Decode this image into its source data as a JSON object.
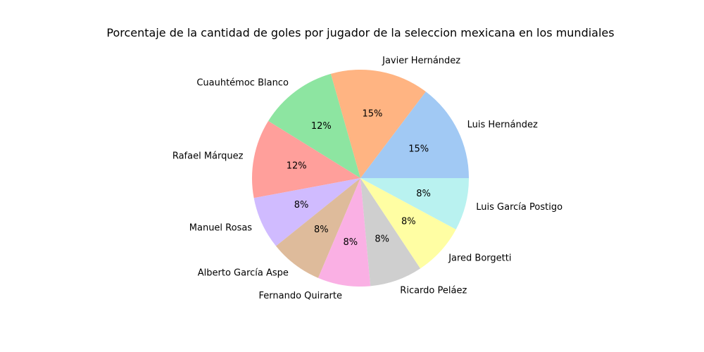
{
  "chart_data": {
    "type": "pie",
    "title": "Porcentaje de la cantidad de goles por jugador de la seleccion mexicana en los mundiales",
    "start_angle_deg": 0,
    "direction": "counterclockwise",
    "slices": [
      {
        "label": "Luis Hernández",
        "value": 15,
        "pct_text": "15%",
        "color": "#a1c9f4"
      },
      {
        "label": "Javier Hernández",
        "value": 15,
        "pct_text": "15%",
        "color": "#ffb482"
      },
      {
        "label": "Cuauhtémoc Blanco",
        "value": 12,
        "pct_text": "12%",
        "color": "#8de5a1"
      },
      {
        "label": "Rafael Márquez",
        "value": 12,
        "pct_text": "12%",
        "color": "#ff9f9b"
      },
      {
        "label": "Manuel Rosas",
        "value": 8,
        "pct_text": "8%",
        "color": "#d0bbff"
      },
      {
        "label": "Alberto García Aspe",
        "value": 8,
        "pct_text": "8%",
        "color": "#debb9b"
      },
      {
        "label": "Fernando Quirarte",
        "value": 8,
        "pct_text": "8%",
        "color": "#fab0e4"
      },
      {
        "label": "Ricardo Peláez",
        "value": 8,
        "pct_text": "8%",
        "color": "#cfcfcf"
      },
      {
        "label": "Jared Borgetti",
        "value": 8,
        "pct_text": "8%",
        "color": "#fffea3"
      },
      {
        "label": "Luis García Postigo",
        "value": 8,
        "pct_text": "8%",
        "color": "#b9f2f0"
      }
    ]
  }
}
